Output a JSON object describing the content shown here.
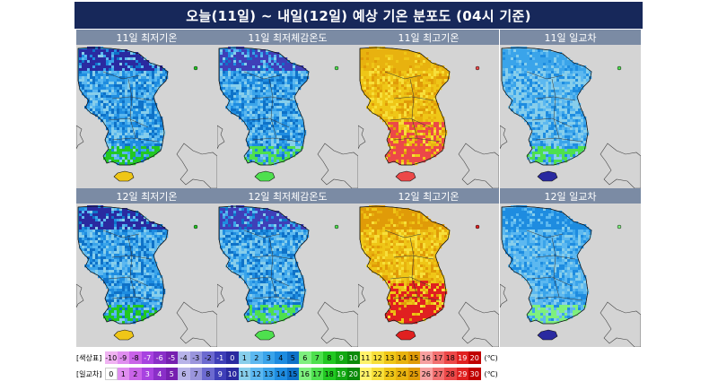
{
  "title": "오늘(11일) ~ 내일(12일) 예상 기온 분포도 (04시 기준)",
  "panels": [
    {
      "label": "11일 최저기온",
      "kind": "min"
    },
    {
      "label": "11일 최저체감온도",
      "kind": "feel"
    },
    {
      "label": "11일 최고기온",
      "kind": "max"
    },
    {
      "label": "11일 일교차",
      "kind": "range"
    },
    {
      "label": "12일 최저기온",
      "kind": "min"
    },
    {
      "label": "12일 최저체감온도",
      "kind": "feel"
    },
    {
      "label": "12일 최고기온",
      "kind": "max2"
    },
    {
      "label": "12일 일교차",
      "kind": "range2"
    }
  ],
  "legend": {
    "temp_label": "[색상표]",
    "temp_values": [
      "-10",
      "-9",
      "-8",
      "-7",
      "-6",
      "-5",
      "-4",
      "-3",
      "-2",
      "-1",
      "0",
      "1",
      "2",
      "3",
      "4",
      "5",
      "6",
      "7",
      "8",
      "9",
      "10",
      "11",
      "12",
      "13",
      "14",
      "15",
      "16",
      "17",
      "18",
      "19",
      "20"
    ],
    "temp_colors": [
      "#f0b3f2",
      "#e08ef0",
      "#c963e8",
      "#a843e0",
      "#8a2fc8",
      "#7620b0",
      "#b7b3e8",
      "#9a95dc",
      "#6c6ad0",
      "#3f3fb8",
      "#2a2aa0",
      "#87ceeb",
      "#5cb8f0",
      "#3aa4ea",
      "#1e8ce0",
      "#0e72c8",
      "#7ef07e",
      "#4ee04e",
      "#22c822",
      "#12a812",
      "#0a8a0a",
      "#fff36a",
      "#f7df3a",
      "#efc617",
      "#e8b20f",
      "#e09b08",
      "#f7a0a0",
      "#f27070",
      "#ec4848",
      "#e02020",
      "#c00000"
    ],
    "range_label": "[일교차]",
    "range_values": [
      "0",
      "1",
      "2",
      "3",
      "4",
      "5",
      "6",
      "7",
      "8",
      "9",
      "10",
      "11",
      "12",
      "13",
      "14",
      "15",
      "16",
      "17",
      "18",
      "19",
      "20",
      "21",
      "22",
      "23",
      "24",
      "25",
      "26",
      "27",
      "28",
      "29",
      "30"
    ],
    "range_colors": [
      "#ffffff",
      "#e08ef0",
      "#c963e8",
      "#a843e0",
      "#8a2fc8",
      "#7620b0",
      "#b7b3e8",
      "#9a95dc",
      "#6c6ad0",
      "#3f3fb8",
      "#2a2aa0",
      "#87ceeb",
      "#5cb8f0",
      "#3aa4ea",
      "#1e8ce0",
      "#0e72c8",
      "#7ef07e",
      "#4ee04e",
      "#22c822",
      "#12a812",
      "#0a8a0a",
      "#fff36a",
      "#f7df3a",
      "#efc617",
      "#e8b20f",
      "#e09b08",
      "#f7a0a0",
      "#f27070",
      "#ec4848",
      "#e02020",
      "#c00000"
    ],
    "unit": "(℃)"
  },
  "chart_data": {
    "type": "heatmap",
    "title": "오늘(11일) ~ 내일(12일) 예상 기온 분포도 (04시 기준)",
    "panels": [
      "11일 최저기온",
      "11일 최저체감온도",
      "11일 최고기온",
      "11일 일교차",
      "12일 최저기온",
      "12일 최저체감온도",
      "12일 최고기온",
      "12일 일교차"
    ],
    "colorscale_temperature": {
      "min": -10,
      "max": 20,
      "unit": "℃"
    },
    "colorscale_daily_range": {
      "min": 0,
      "max": 30,
      "unit": "℃"
    }
  }
}
